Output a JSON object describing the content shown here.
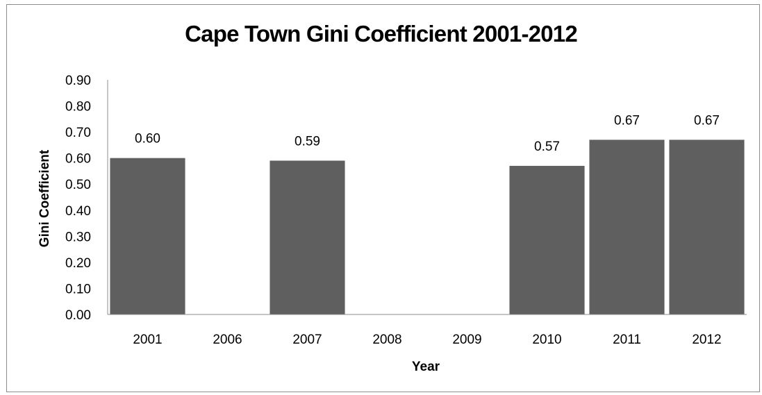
{
  "chart_data": {
    "type": "bar",
    "title": "Cape Town Gini Coefficient 2001-2012",
    "xlabel": "Year",
    "ylabel": "Gini Coefficient",
    "categories": [
      "2001",
      "2006",
      "2007",
      "2008",
      "2009",
      "2010",
      "2011",
      "2012"
    ],
    "values": [
      0.6,
      null,
      0.59,
      null,
      null,
      0.57,
      0.67,
      0.67
    ],
    "data_labels": [
      "0.60",
      "",
      "0.59",
      "",
      "",
      "0.57",
      "0.67",
      "0.67"
    ],
    "ylim": [
      0,
      0.9
    ],
    "yticks": [
      "0.00",
      "0.10",
      "0.20",
      "0.30",
      "0.40",
      "0.50",
      "0.60",
      "0.70",
      "0.80",
      "0.90"
    ],
    "grid": false,
    "legend": "none",
    "bar_color": "#5f5f5f"
  }
}
